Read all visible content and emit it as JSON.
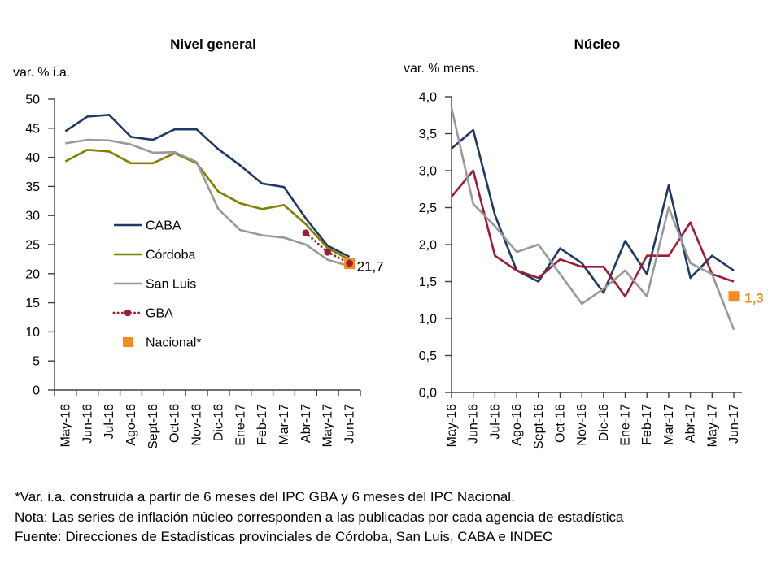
{
  "colors": {
    "navy": "#1F3864",
    "olive": "#808000",
    "gray": "#999999",
    "dark_red": "#9E1B32",
    "orange": "#F68C1E",
    "axis": "#404040",
    "text": "#000000"
  },
  "chart_data": [
    {
      "type": "line",
      "title": "Nivel general",
      "unit_label": "var. % i.a.",
      "categories": [
        "May-16",
        "Jun-16",
        "Jul-16",
        "Ago-16",
        "Sept-16",
        "Oct-16",
        "Nov-16",
        "Dic-16",
        "Ene-17",
        "Feb-17",
        "Mar-17",
        "Abr-17",
        "May-17",
        "Jun-17"
      ],
      "ylim": [
        0,
        50
      ],
      "yticks": [
        {
          "value": 0,
          "label": "0"
        },
        {
          "value": 5,
          "label": "5"
        },
        {
          "value": 10,
          "label": "10"
        },
        {
          "value": 15,
          "label": "15"
        },
        {
          "value": 20,
          "label": "20"
        },
        {
          "value": 25,
          "label": "25"
        },
        {
          "value": 30,
          "label": "30"
        },
        {
          "value": 35,
          "label": "35"
        },
        {
          "value": 40,
          "label": "40"
        },
        {
          "value": 45,
          "label": "45"
        },
        {
          "value": 50,
          "label": "50"
        }
      ],
      "grid": false,
      "x_mode": "between-ticks",
      "series": [
        {
          "name": "CABA",
          "color": "navy",
          "style": "solid",
          "marker": "none",
          "values": [
            44.5,
            47.0,
            47.3,
            43.5,
            43.0,
            44.8,
            44.8,
            41.4,
            38.6,
            35.5,
            34.9,
            29.5,
            24.8,
            22.9
          ]
        },
        {
          "name": "Córdoba",
          "color": "olive",
          "style": "solid",
          "marker": "none",
          "values": [
            39.3,
            41.3,
            41.0,
            39.0,
            39.0,
            40.7,
            39.0,
            34.1,
            32.1,
            31.1,
            31.8,
            28.5,
            24.4,
            22.4
          ]
        },
        {
          "name": "San Luis",
          "color": "gray",
          "style": "solid",
          "marker": "none",
          "values": [
            42.4,
            43.0,
            42.9,
            42.2,
            40.8,
            40.9,
            39.2,
            31.1,
            27.5,
            26.6,
            26.2,
            25.0,
            22.4,
            21.3
          ]
        },
        {
          "name": "GBA",
          "color": "dark_red",
          "style": "dotted",
          "marker": "circle",
          "values": [
            null,
            null,
            null,
            null,
            null,
            null,
            null,
            null,
            null,
            null,
            null,
            27.0,
            23.7,
            21.8
          ]
        },
        {
          "name": "Nacional*",
          "color": "orange",
          "style": "none",
          "marker": "square",
          "values": [
            null,
            null,
            null,
            null,
            null,
            null,
            null,
            null,
            null,
            null,
            null,
            null,
            null,
            21.7
          ]
        }
      ],
      "legend": {
        "position": "inside-left",
        "items": [
          "CABA",
          "Córdoba",
          "San Luis",
          "GBA",
          "Nacional*"
        ]
      },
      "annotations": [
        {
          "text": "21,7",
          "series": "Nacional*",
          "color": "text",
          "bold": false
        }
      ]
    },
    {
      "type": "line",
      "title": "Núcleo",
      "unit_label": "var. % mens.",
      "categories": [
        "May-16",
        "Jun-16",
        "Jul-16",
        "Ago-16",
        "Sept-16",
        "Oct-16",
        "Nov-16",
        "Dic-16",
        "Ene-17",
        "Feb-17",
        "Mar-17",
        "Abr-17",
        "May-17",
        "Jun-17"
      ],
      "ylim": [
        0,
        4
      ],
      "yticks": [
        {
          "value": 0,
          "label": "0,0"
        },
        {
          "value": 0.5,
          "label": "0,5"
        },
        {
          "value": 1,
          "label": "1,0"
        },
        {
          "value": 1.5,
          "label": "1,5"
        },
        {
          "value": 2,
          "label": "2,0"
        },
        {
          "value": 2.5,
          "label": "2,5"
        },
        {
          "value": 3,
          "label": "3,0"
        },
        {
          "value": 3.5,
          "label": "3,5"
        },
        {
          "value": 4,
          "label": "4,0"
        }
      ],
      "grid": false,
      "x_mode": "on-ticks",
      "series": [
        {
          "name": "CABA",
          "color": "navy",
          "style": "solid",
          "marker": "none",
          "values": [
            3.3,
            3.55,
            2.4,
            1.65,
            1.5,
            1.95,
            1.75,
            1.35,
            2.05,
            1.6,
            2.8,
            1.55,
            1.85,
            1.65
          ]
        },
        {
          "name": "GBA",
          "color": "dark_red",
          "style": "solid",
          "marker": "none",
          "values": [
            2.65,
            3.0,
            1.85,
            1.65,
            1.55,
            1.8,
            1.7,
            1.7,
            1.3,
            1.85,
            1.85,
            2.3,
            1.6,
            1.5
          ]
        },
        {
          "name": "San Luis",
          "color": "gray",
          "style": "solid",
          "marker": "none",
          "values": [
            3.85,
            2.55,
            2.25,
            1.9,
            2.0,
            1.6,
            1.2,
            1.4,
            1.65,
            1.3,
            2.5,
            1.75,
            1.6,
            0.85
          ]
        },
        {
          "name": "Nacional",
          "color": "orange",
          "style": "none",
          "marker": "square",
          "values": [
            null,
            null,
            null,
            null,
            null,
            null,
            null,
            null,
            null,
            null,
            null,
            null,
            null,
            1.3
          ]
        }
      ],
      "legend": null,
      "annotations": [
        {
          "text": "1,3",
          "series": "Nacional",
          "color": "orange",
          "bold": true
        }
      ]
    }
  ],
  "footnotes": [
    "*Var. i.a. construida a partir de 6 meses del IPC GBA y 6 meses del IPC Nacional.",
    "Nota: Las series de inflación núcleo corresponden a las publicadas por cada agencia de estadística",
    "Fuente: Direcciones de Estadísticas provinciales de Córdoba, San Luis, CABA e INDEC"
  ]
}
